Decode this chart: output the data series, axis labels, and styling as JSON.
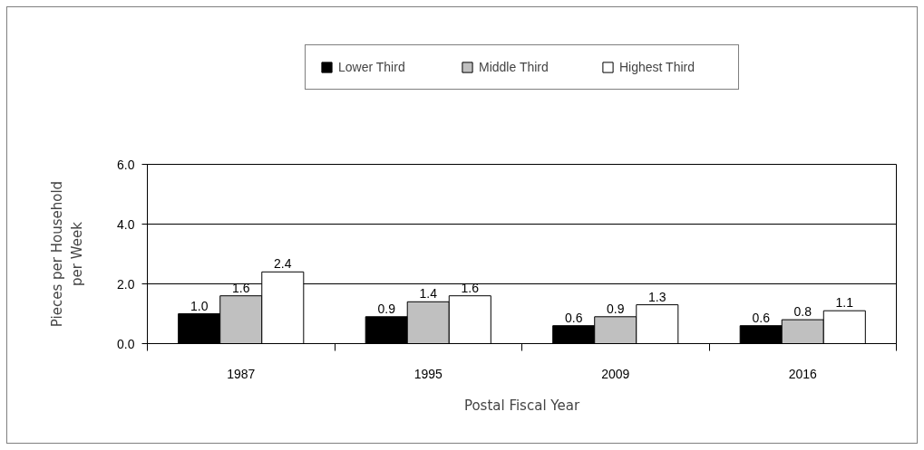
{
  "chart_data": {
    "type": "bar",
    "xlabel": "Postal Fiscal Year",
    "ylabel": "Pieces per Household per Week",
    "categories": [
      "1987",
      "1995",
      "2009",
      "2016"
    ],
    "series": [
      {
        "name": "Lower Third",
        "color": "#000000",
        "values": [
          1.0,
          0.9,
          0.6,
          0.6
        ],
        "value_labels": [
          "1.0",
          "0.9",
          "0.6",
          "0.6"
        ]
      },
      {
        "name": "Middle Third",
        "color": "#c0c0c0",
        "values": [
          1.6,
          1.4,
          0.9,
          0.8
        ],
        "value_labels": [
          "1.6",
          "1.4",
          "0.9",
          "0.8"
        ]
      },
      {
        "name": "Highest Third",
        "color": "#ffffff",
        "values": [
          2.4,
          1.6,
          1.3,
          1.1
        ],
        "value_labels": [
          "2.4",
          "1.6",
          "1.3",
          "1.1"
        ]
      }
    ],
    "ylim": [
      0,
      6
    ],
    "yticks": [
      {
        "value": 0,
        "label": "0.0"
      },
      {
        "value": 2,
        "label": "2.0"
      },
      {
        "value": 4,
        "label": "4.0"
      },
      {
        "value": 6,
        "label": "6.0"
      }
    ],
    "grid": "y",
    "legend": "top"
  }
}
